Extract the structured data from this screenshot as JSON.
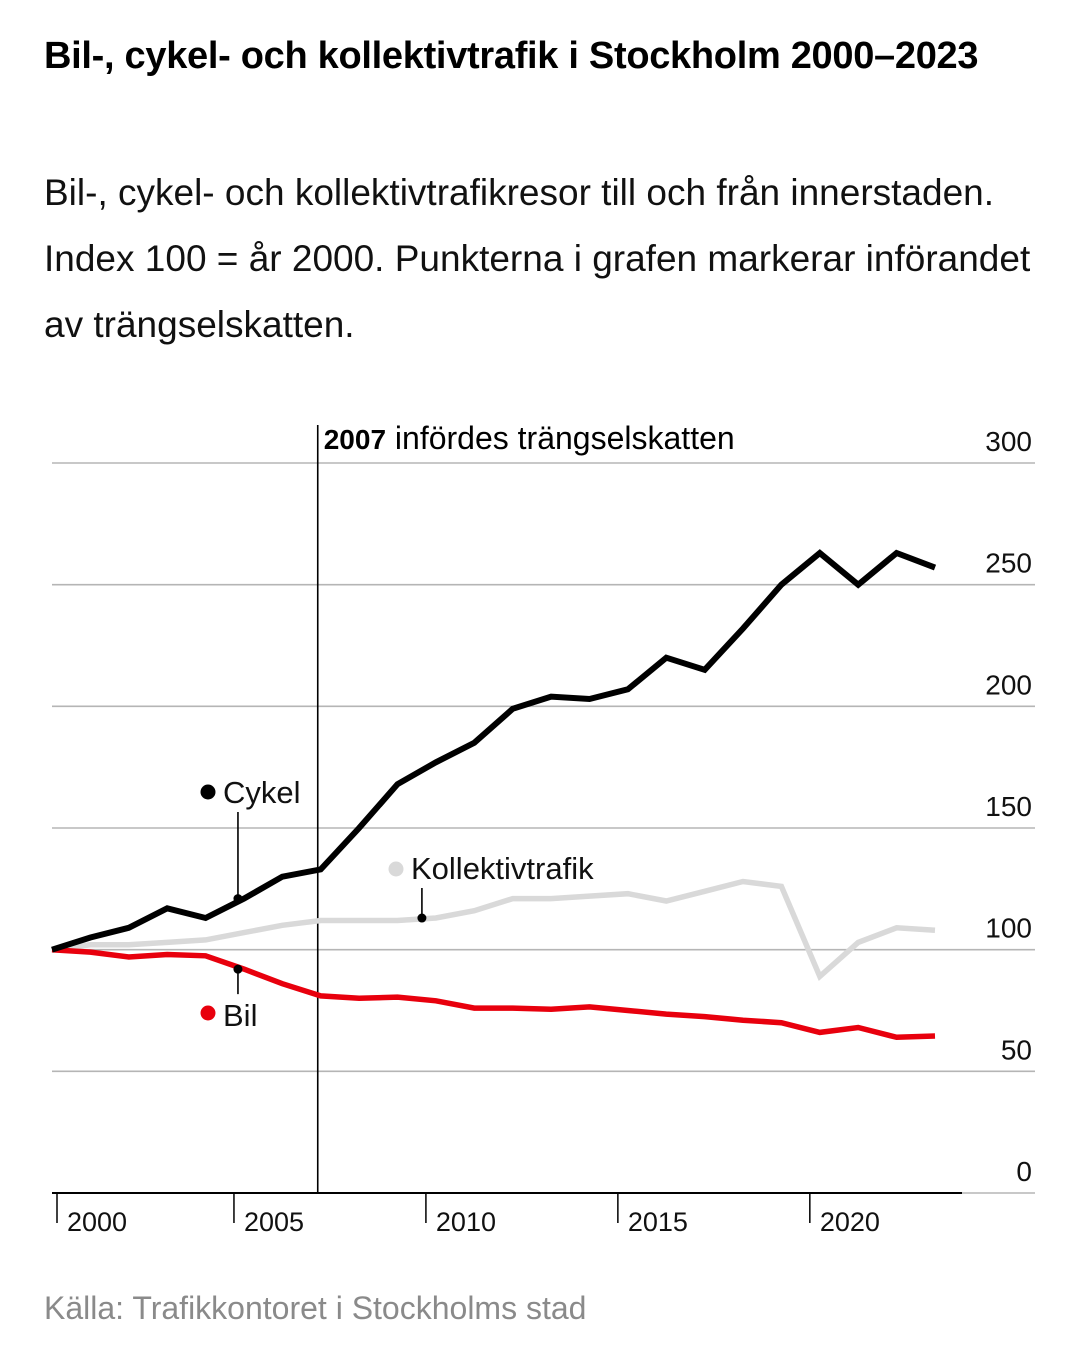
{
  "header": {
    "title": "Bil-, cykel- och kollektivtrafik i Stockholm 2000–2023",
    "subtitle": "Bil-, cykel- och kollektivtrafikresor till och från innerstaden. Index 100 = år 2000. Punkterna i grafen markerar införandet av trängselskatten."
  },
  "source": "Källa: Trafikkontoret i Stockholms stad",
  "chart_data": {
    "type": "line",
    "ylim": [
      0,
      300
    ],
    "xlim": [
      2000,
      2023
    ],
    "y_ticks": [
      "0",
      "50",
      "100",
      "150",
      "200",
      "250",
      "300"
    ],
    "x_ticks": [
      "2000",
      "2005",
      "2010",
      "2015",
      "2020"
    ],
    "grid": true,
    "y_axis_side": "right",
    "annotation": {
      "year": 2007,
      "bold_text": "2007",
      "text": " infördes trängselskatten"
    },
    "series": [
      {
        "name": "Cykel",
        "color": "#000000",
        "x": [
          2000,
          2001,
          2002,
          2003,
          2004,
          2005,
          2006,
          2007,
          2008,
          2009,
          2010,
          2011,
          2012,
          2013,
          2014,
          2015,
          2016,
          2017,
          2018,
          2019,
          2020,
          2021,
          2022,
          2023
        ],
        "values": [
          100,
          105,
          109,
          117,
          113,
          121,
          130,
          133,
          150,
          168,
          177,
          185,
          199,
          204,
          203,
          207,
          220,
          215,
          232,
          250,
          263,
          250,
          263,
          257
        ],
        "marker_x": 2005
      },
      {
        "name": "Kollektivtrafik",
        "color": "#d9d9d9",
        "x": [
          2000,
          2001,
          2002,
          2003,
          2004,
          2005,
          2006,
          2007,
          2008,
          2009,
          2010,
          2011,
          2012,
          2013,
          2014,
          2015,
          2016,
          2017,
          2018,
          2019,
          2020,
          2021,
          2022,
          2023
        ],
        "values": [
          100,
          102,
          102,
          103,
          104,
          107,
          110,
          112,
          112,
          112,
          113,
          116,
          121,
          121,
          122,
          123,
          120,
          124,
          128,
          126,
          89,
          103,
          109,
          108
        ],
        "marker_x": 2010
      },
      {
        "name": "Bil",
        "color": "#e8000d",
        "x": [
          2000,
          2001,
          2002,
          2003,
          2004,
          2005,
          2006,
          2007,
          2008,
          2009,
          2010,
          2011,
          2012,
          2013,
          2014,
          2015,
          2016,
          2017,
          2018,
          2019,
          2020,
          2021,
          2022,
          2023
        ],
        "values": [
          100,
          99,
          97,
          98,
          97.5,
          92,
          86,
          81,
          80,
          80.5,
          79,
          76,
          76,
          75.5,
          76.5,
          75,
          73.5,
          72.5,
          71,
          70,
          66,
          68,
          64,
          64.5
        ],
        "marker_x": 2005
      }
    ]
  }
}
